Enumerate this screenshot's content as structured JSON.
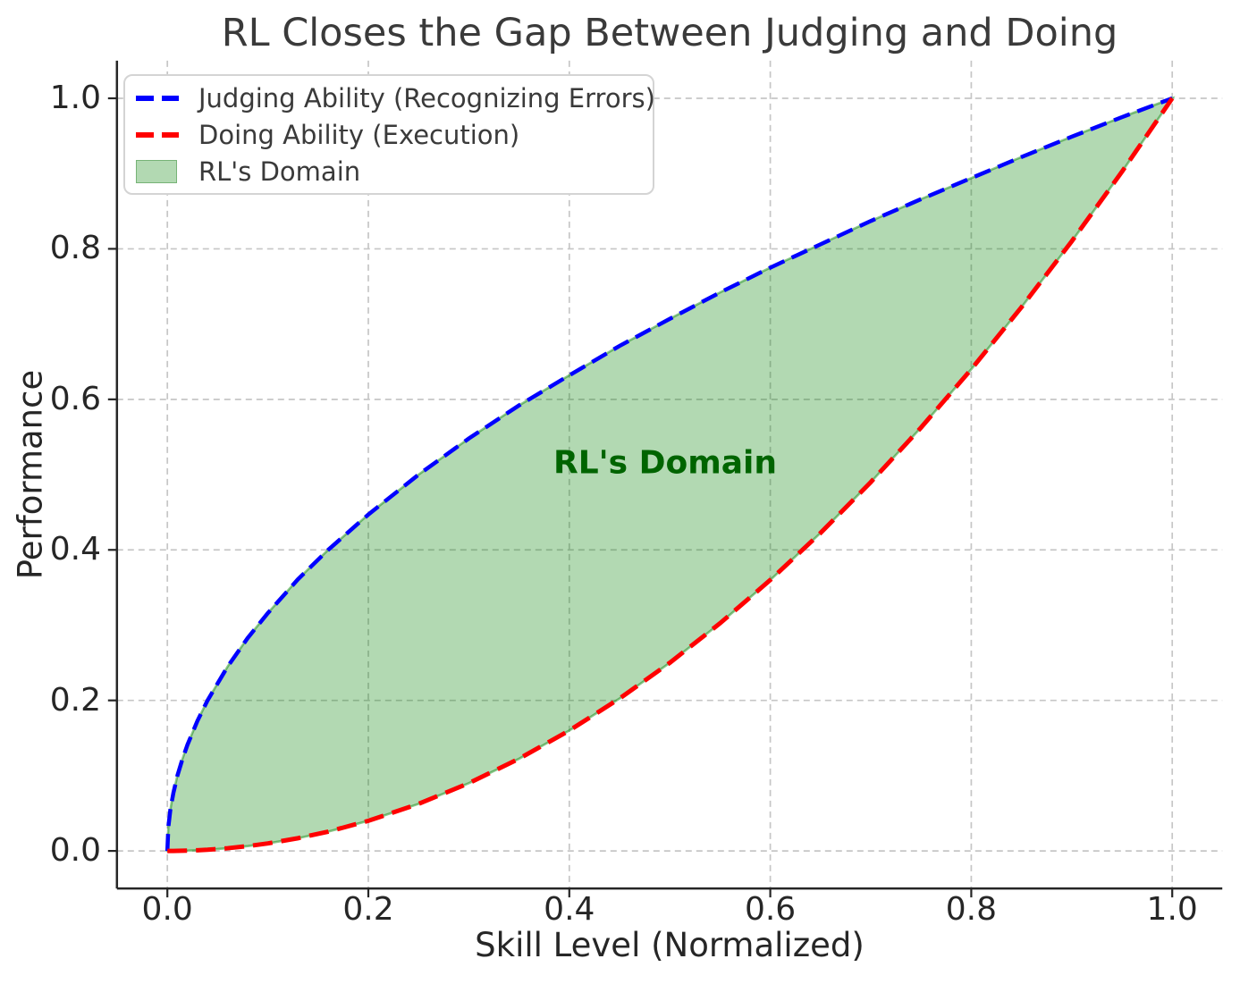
{
  "chart_data": {
    "type": "line",
    "title": "RL Closes the Gap Between Judging and Doing",
    "xlabel": "Skill Level (Normalized)",
    "ylabel": "Performance",
    "xlim": [
      -0.05,
      1.05
    ],
    "ylim": [
      -0.05,
      1.05
    ],
    "grid": true,
    "legend_position": "upper left",
    "xticks": [
      0.0,
      0.2,
      0.4,
      0.6,
      0.8,
      1.0
    ],
    "yticks": [
      0.0,
      0.2,
      0.4,
      0.6,
      0.8,
      1.0
    ],
    "xtick_labels": [
      "0.0",
      "0.2",
      "0.4",
      "0.6",
      "0.8",
      "1.0"
    ],
    "ytick_labels": [
      "0.0",
      "0.2",
      "0.4",
      "0.6",
      "0.8",
      "1.0"
    ],
    "x": [
      0,
      0.001,
      0.003,
      0.006,
      0.01,
      0.015,
      0.02,
      0.03,
      0.04,
      0.06,
      0.08,
      0.1,
      0.13,
      0.16,
      0.2,
      0.25,
      0.3,
      0.35,
      0.4,
      0.45,
      0.5,
      0.55,
      0.6,
      0.65,
      0.7,
      0.75,
      0.8,
      0.85,
      0.9,
      0.95,
      1.0
    ],
    "series": [
      {
        "name": "Judging Ability (Recognizing Errors)",
        "formula": "sqrt(x)",
        "color": "#0000ff",
        "style": "dashed",
        "dash": "19 9",
        "width": 4.5,
        "values": [
          0,
          0.032,
          0.055,
          0.077,
          0.1,
          0.122,
          0.141,
          0.173,
          0.2,
          0.245,
          0.283,
          0.316,
          0.361,
          0.4,
          0.447,
          0.5,
          0.548,
          0.592,
          0.632,
          0.671,
          0.707,
          0.742,
          0.775,
          0.806,
          0.837,
          0.866,
          0.894,
          0.922,
          0.949,
          0.975,
          1.0
        ]
      },
      {
        "name": "Doing Ability (Execution)",
        "formula": "x^2",
        "color": "#ff0000",
        "style": "dashed",
        "dash": "22 10",
        "width": 5,
        "values": [
          0,
          0,
          0,
          0,
          0.0001,
          0.0002,
          0.0004,
          0.0009,
          0.0016,
          0.0036,
          0.0064,
          0.01,
          0.0169,
          0.0256,
          0.04,
          0.0625,
          0.09,
          0.1225,
          0.16,
          0.2025,
          0.25,
          0.3025,
          0.36,
          0.4225,
          0.49,
          0.5625,
          0.64,
          0.7225,
          0.81,
          0.9025,
          1.0
        ]
      }
    ],
    "fill_between": {
      "label": "RL's Domain",
      "fill_color": "rgba(0, 128, 0, 0.3)",
      "edge_color": "rgba(0, 128, 0, 0.45)"
    },
    "annotation": {
      "text": "RL's Domain",
      "x": 0.5,
      "y": 0.515,
      "color": "#006400"
    }
  },
  "legend": {
    "items": [
      {
        "label": "Judging Ability (Recognizing Errors)",
        "swatch": "dashed-line",
        "color": "#0000ff"
      },
      {
        "label": "Doing Ability (Execution)",
        "swatch": "dashed-line",
        "color": "#ff0000"
      },
      {
        "label": "RL's Domain",
        "swatch": "patch",
        "color": "rgba(0, 128, 0, 0.3)"
      }
    ]
  },
  "style": {
    "grid_color": "#c6c6c6",
    "spine_color": "#262626",
    "tick_color": "#262626",
    "title_color": "#3a3a3a",
    "background": "#ffffff"
  }
}
